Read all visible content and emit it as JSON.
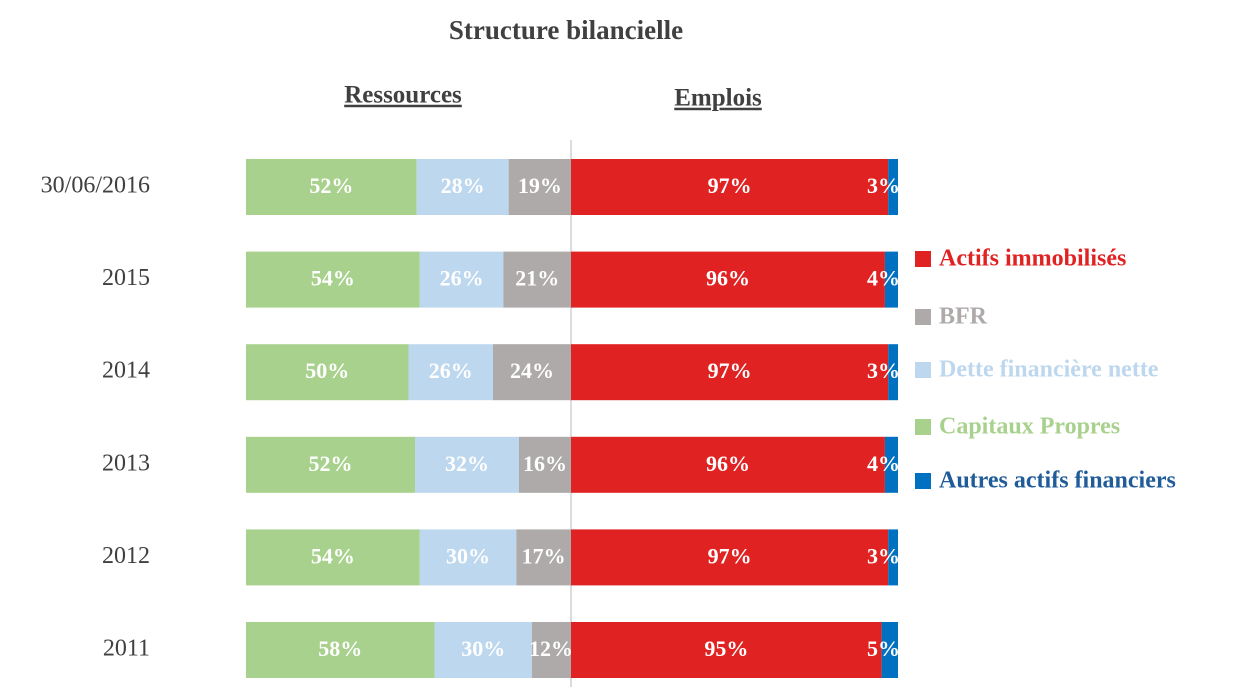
{
  "chart_data": {
    "type": "bar",
    "stacked": true,
    "title": "Structure bilancielle",
    "categories": [
      "30/06/2016",
      "2015",
      "2014",
      "2013",
      "2012",
      "2011"
    ],
    "panels": [
      {
        "title": "Ressources",
        "series": [
          {
            "name": "Capitaux Propres",
            "color": "#a9d18e",
            "values": [
              52,
              54,
              50,
              52,
              54,
              58
            ],
            "value_labels": [
              "52%",
              "54%",
              "50%",
              "52%",
              "54%",
              "58%"
            ]
          },
          {
            "name": "Dette financière nette",
            "color": "#bdd7ee",
            "values": [
              28,
              26,
              26,
              32,
              30,
              30
            ],
            "value_labels": [
              "28%",
              "26%",
              "26%",
              "32%",
              "30%",
              "30%"
            ]
          },
          {
            "name": "BFR",
            "color": "#aeaaaa",
            "values": [
              19,
              21,
              24,
              16,
              17,
              12
            ],
            "value_labels": [
              "19%",
              "21%",
              "24%",
              "16%",
              "17%",
              "12%"
            ]
          }
        ]
      },
      {
        "title": "Emplois",
        "series": [
          {
            "name": "Actifs immobilisés",
            "color": "#e02222",
            "values": [
              97,
              96,
              97,
              96,
              97,
              95
            ],
            "value_labels": [
              "97%",
              "96%",
              "97%",
              "96%",
              "97%",
              "95%"
            ]
          },
          {
            "name": "Autres actifs financiers",
            "color": "#0070c0",
            "values": [
              3,
              4,
              3,
              4,
              3,
              5
            ],
            "value_labels": [
              "3%",
              "4%",
              "3%",
              "4%",
              "3%",
              "5%"
            ]
          }
        ]
      }
    ]
  }
}
